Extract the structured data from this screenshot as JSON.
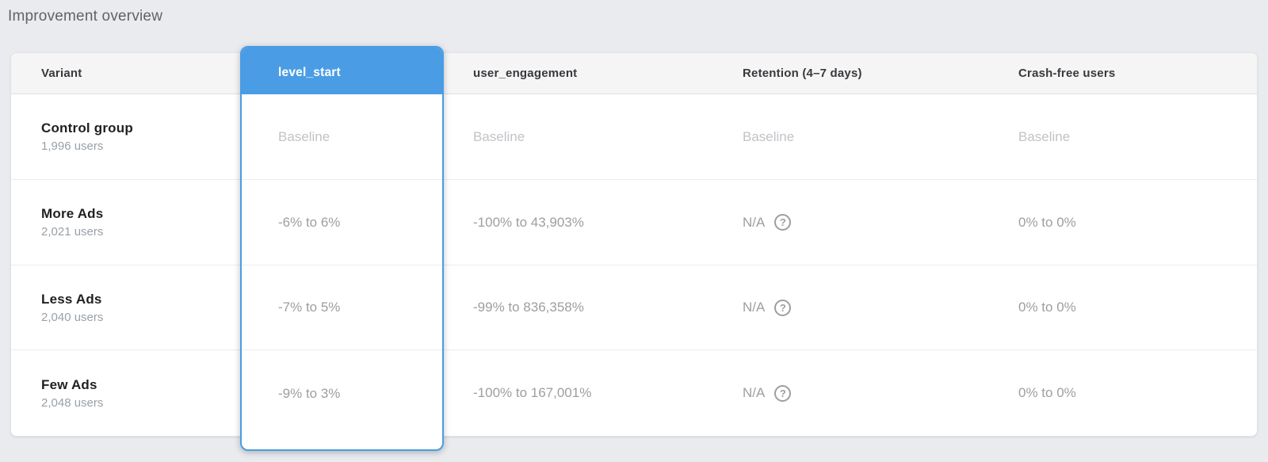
{
  "page": {
    "title": "Improvement overview",
    "background": "#e9ebee"
  },
  "colors": {
    "accent_blue": "#4a9de5",
    "header_bg": "#f5f5f6",
    "value_gray": "#9e9e9e",
    "baseline_gray": "#c1c3c7"
  },
  "table": {
    "columns": [
      {
        "label": "Variant"
      },
      {
        "label": "level_start",
        "selected": true
      },
      {
        "label": "user_engagement"
      },
      {
        "label": "Retention (4–7 days)"
      },
      {
        "label": "Crash-free users"
      }
    ],
    "help_icon": "?",
    "rows": [
      {
        "variant": "Control group",
        "users": "1,996 users",
        "level_start": "Baseline",
        "user_engagement": "Baseline",
        "retention": "Baseline",
        "crash_free": "Baseline"
      },
      {
        "variant": "More Ads",
        "users": "2,021 users",
        "level_start": "-6% to 6%",
        "user_engagement": "-100% to 43,903%",
        "retention": "N/A",
        "crash_free": "0% to 0%"
      },
      {
        "variant": "Less Ads",
        "users": "2,040 users",
        "level_start": "-7% to 5%",
        "user_engagement": "-99% to 836,358%",
        "retention": "N/A",
        "crash_free": "0% to 0%"
      },
      {
        "variant": "Few Ads",
        "users": "2,048 users",
        "level_start": "-9% to 3%",
        "user_engagement": "-100% to 167,001%",
        "retention": "N/A",
        "crash_free": "0% to 0%"
      }
    ]
  }
}
